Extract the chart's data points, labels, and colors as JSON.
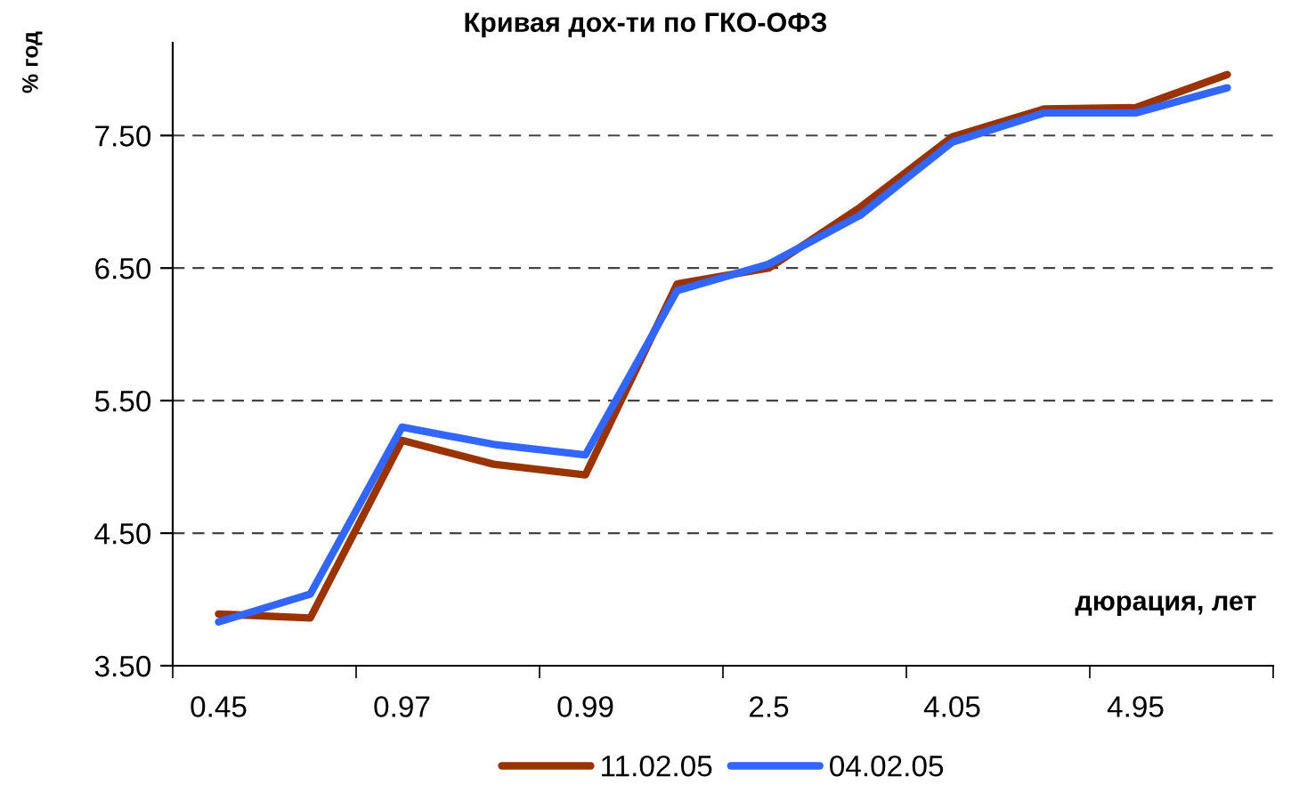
{
  "chart_data": {
    "type": "line",
    "title": "Кривая дох-ти по ГКО-ОФЗ",
    "xlabel": "дюрация, лет",
    "ylabel": "% год",
    "categories": [
      "0.45",
      null,
      "0.97",
      null,
      "0.99",
      null,
      "2.5",
      null,
      "4.05",
      null,
      "4.95",
      null
    ],
    "series": [
      {
        "name": "11.02.05",
        "color": "#993300",
        "values": [
          3.89,
          3.86,
          5.2,
          5.02,
          4.94,
          6.38,
          6.5,
          6.96,
          7.49,
          7.7,
          7.71,
          7.96
        ]
      },
      {
        "name": "04.02.05",
        "color": "#3366ff",
        "values": [
          3.83,
          4.04,
          5.3,
          5.17,
          5.09,
          6.33,
          6.53,
          6.9,
          7.45,
          7.67,
          7.67,
          7.86
        ]
      }
    ],
    "ylim": [
      3.5,
      8.2
    ],
    "yticks": [
      {
        "value": 3.5,
        "label": "3.50"
      },
      {
        "value": 4.5,
        "label": "4.50"
      },
      {
        "value": 5.5,
        "label": "5.50"
      },
      {
        "value": 6.5,
        "label": "6.50"
      },
      {
        "value": 7.5,
        "label": "7.50"
      }
    ],
    "grid": "y",
    "legend": "bottom",
    "marker": "none",
    "line_style": "solid"
  }
}
